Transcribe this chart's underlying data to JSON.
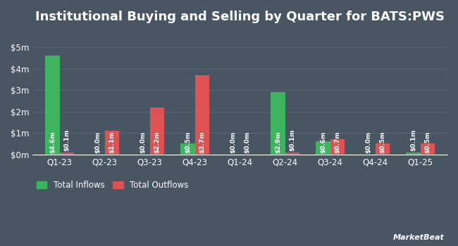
{
  "title": "Institutional Buying and Selling by Quarter for BATS:PWS",
  "quarters": [
    "Q1-23",
    "Q2-23",
    "Q3-23",
    "Q4-23",
    "Q1-24",
    "Q2-24",
    "Q3-24",
    "Q4-24",
    "Q1-25"
  ],
  "inflows": [
    4.6,
    0.0,
    0.0,
    0.5,
    0.0,
    2.9,
    0.6,
    0.0,
    0.1
  ],
  "outflows": [
    0.1,
    1.1,
    2.2,
    3.7,
    0.0,
    0.1,
    0.7,
    0.5,
    0.5
  ],
  "inflow_labels": [
    "$4.6m",
    "$0.0m",
    "$0.0m",
    "$0.5m",
    "$0.0m",
    "$2.9m",
    "$0.6m",
    "$0.0m",
    "$0.1m"
  ],
  "outflow_labels": [
    "$0.1m",
    "$1.1m",
    "$2.2m",
    "$3.7m",
    "$0.0m",
    "$0.1m",
    "$0.7m",
    "$0.5m",
    "$0.5m"
  ],
  "inflow_color": "#3cb55e",
  "outflow_color": "#e05252",
  "background_color": "#485563",
  "grid_color": "#5a6578",
  "text_color": "#ffffff",
  "yticks": [
    0,
    1,
    2,
    3,
    4,
    5
  ],
  "ytick_labels": [
    "$0m",
    "$1m",
    "$2m",
    "$3m",
    "$4m",
    "$5m"
  ],
  "ylim": [
    0,
    5.8
  ],
  "bar_width": 0.32,
  "legend_inflow": "Total Inflows",
  "legend_outflow": "Total Outflows",
  "label_fontsize": 6.5,
  "tick_fontsize": 8.5,
  "title_fontsize": 13
}
